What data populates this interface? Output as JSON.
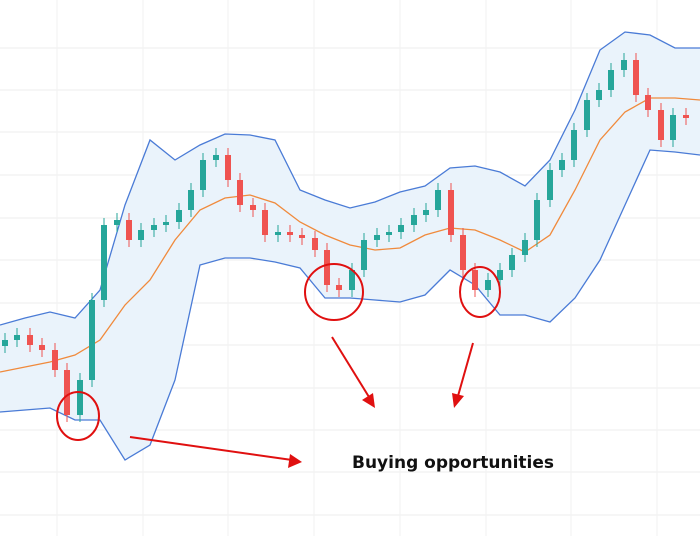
{
  "chart_data": {
    "type": "candlestick",
    "annotation": "Buying opportunities",
    "xlim": [
      0,
      700
    ],
    "ylim": [
      0,
      536
    ],
    "xticks": [
      57,
      143,
      228,
      314,
      400,
      486,
      571,
      657
    ],
    "yticks": [
      488,
      446,
      404,
      361,
      318,
      276,
      233,
      191,
      148,
      106,
      64,
      21
    ],
    "grid": true,
    "band_fill": "#eaf3fb",
    "x": [
      0,
      25,
      50,
      75,
      100,
      125,
      150,
      175,
      200,
      225,
      250,
      275,
      300,
      325,
      350,
      375,
      400,
      425,
      450,
      475,
      500,
      525,
      550,
      575,
      600,
      625,
      650,
      675,
      700
    ],
    "series": [
      {
        "color": "#4a7bd6",
        "values": [
          211,
          218,
          224,
          218,
          246,
          331,
          396,
          376,
          391,
          402,
          401,
          396,
          346,
          336,
          328,
          334,
          344,
          350,
          368,
          370,
          364,
          350,
          376,
          426,
          486,
          504,
          501,
          488,
          488
        ]
      },
      {
        "color": "#f08a3c",
        "values": [
          164,
          169,
          174,
          181,
          196,
          231,
          256,
          296,
          326,
          338,
          341,
          333,
          314,
          301,
          291,
          286,
          288,
          301,
          308,
          306,
          296,
          284,
          301,
          346,
          396,
          424,
          438,
          438,
          436
        ]
      },
      {
        "color": "#4a7bd6",
        "values": [
          124,
          126,
          128,
          116,
          116,
          76,
          91,
          156,
          271,
          278,
          278,
          274,
          268,
          238,
          238,
          236,
          234,
          241,
          266,
          251,
          221,
          221,
          214,
          238,
          276,
          331,
          386,
          384,
          381
        ]
      }
    ],
    "candles": {
      "up_color": "#26a69a",
      "down_color": "#ef5350",
      "x": [
        5,
        17,
        30,
        42,
        55,
        67,
        80,
        92,
        104,
        117,
        129,
        141,
        154,
        166,
        179,
        191,
        203,
        216,
        228,
        240,
        253,
        265,
        278,
        290,
        302,
        315,
        327,
        339,
        352,
        364,
        377,
        389,
        401,
        414,
        426,
        438,
        451,
        463,
        475,
        488,
        500,
        512,
        525,
        537,
        550,
        562,
        574,
        587,
        599,
        611,
        624,
        636,
        648,
        661,
        673,
        686
      ],
      "open": [
        190,
        196,
        201,
        191,
        186,
        166,
        121,
        156,
        236,
        311,
        316,
        296,
        306,
        311,
        314,
        326,
        346,
        376,
        381,
        356,
        331,
        326,
        301,
        304,
        301,
        298,
        286,
        251,
        246,
        266,
        296,
        301,
        304,
        311,
        321,
        326,
        346,
        301,
        266,
        246,
        256,
        266,
        281,
        296,
        336,
        366,
        376,
        406,
        436,
        446,
        466,
        476,
        441,
        426,
        396,
        421
      ],
      "close": [
        196,
        201,
        191,
        186,
        166,
        121,
        156,
        236,
        311,
        316,
        296,
        306,
        311,
        314,
        326,
        346,
        376,
        381,
        356,
        331,
        326,
        301,
        304,
        301,
        298,
        286,
        251,
        246,
        266,
        296,
        301,
        304,
        311,
        321,
        326,
        346,
        301,
        266,
        246,
        256,
        266,
        281,
        296,
        336,
        366,
        376,
        406,
        436,
        446,
        466,
        476,
        441,
        426,
        396,
        421,
        418
      ],
      "high": [
        203,
        208,
        208,
        198,
        193,
        173,
        163,
        243,
        318,
        323,
        323,
        313,
        318,
        321,
        333,
        353,
        383,
        388,
        388,
        363,
        338,
        333,
        311,
        311,
        308,
        305,
        293,
        258,
        273,
        303,
        308,
        311,
        318,
        328,
        333,
        353,
        353,
        308,
        273,
        263,
        273,
        288,
        303,
        343,
        373,
        383,
        413,
        443,
        453,
        473,
        483,
        483,
        448,
        433,
        428,
        428
      ],
      "low": [
        183,
        189,
        184,
        179,
        159,
        114,
        114,
        149,
        229,
        304,
        289,
        289,
        299,
        304,
        307,
        319,
        339,
        369,
        349,
        324,
        319,
        294,
        294,
        294,
        291,
        279,
        244,
        239,
        239,
        259,
        289,
        294,
        297,
        304,
        314,
        319,
        294,
        259,
        239,
        239,
        249,
        259,
        274,
        289,
        329,
        359,
        369,
        399,
        429,
        439,
        459,
        434,
        419,
        389,
        389,
        411
      ]
    }
  }
}
